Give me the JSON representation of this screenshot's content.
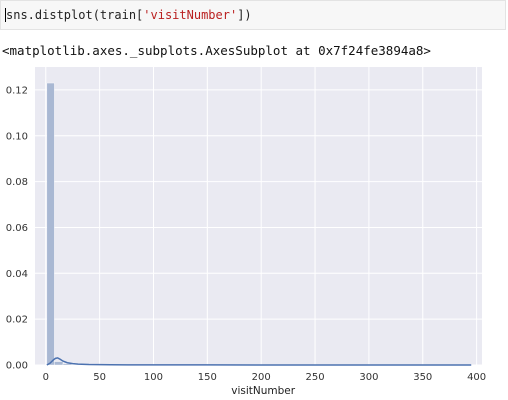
{
  "cell": {
    "code_prefix": "sns.distplot(train[",
    "code_string": "'visitNumber'",
    "code_suffix": "])",
    "output_repr": "<matplotlib.axes._subplots.AxesSubplot at 0x7f24fe3894a8>"
  },
  "colors": {
    "axes_bg": "#eaeaf2",
    "grid": "#ffffff",
    "bar_fill": "#a9b8d3",
    "kde_line": "#4c72b0"
  },
  "chart_data": {
    "type": "histogram",
    "title": "",
    "xlabel": "visitNumber",
    "ylabel": "",
    "xlim": [
      -10,
      405
    ],
    "ylim": [
      0,
      0.13
    ],
    "grid": true,
    "xticks": [
      0,
      50,
      100,
      150,
      200,
      250,
      300,
      350,
      400
    ],
    "xtick_labels": [
      "0",
      "50",
      "100",
      "150",
      "200",
      "250",
      "300",
      "350",
      "400"
    ],
    "yticks": [
      0.0,
      0.02,
      0.04,
      0.06,
      0.08,
      0.1,
      0.12
    ],
    "ytick_labels": [
      "0.00",
      "0.02",
      "0.04",
      "0.06",
      "0.08",
      "0.10",
      "0.12"
    ],
    "bins": [
      {
        "x0": 1,
        "x1": 8,
        "density": 0.123
      },
      {
        "x0": 8,
        "x1": 16,
        "density": 0.0015
      },
      {
        "x0": 16,
        "x1": 24,
        "density": 0.0006
      }
    ],
    "kde": {
      "x": [
        1,
        4,
        7,
        9,
        11,
        13,
        16,
        20,
        25,
        30,
        40,
        60,
        100,
        150,
        200,
        300,
        395
      ],
      "y": [
        0.0,
        0.0008,
        0.0022,
        0.0029,
        0.0031,
        0.0026,
        0.0017,
        0.001,
        0.0006,
        0.0004,
        0.0002,
        0.0001,
        5e-05,
        3e-05,
        2e-05,
        1e-05,
        0.0
      ]
    }
  }
}
